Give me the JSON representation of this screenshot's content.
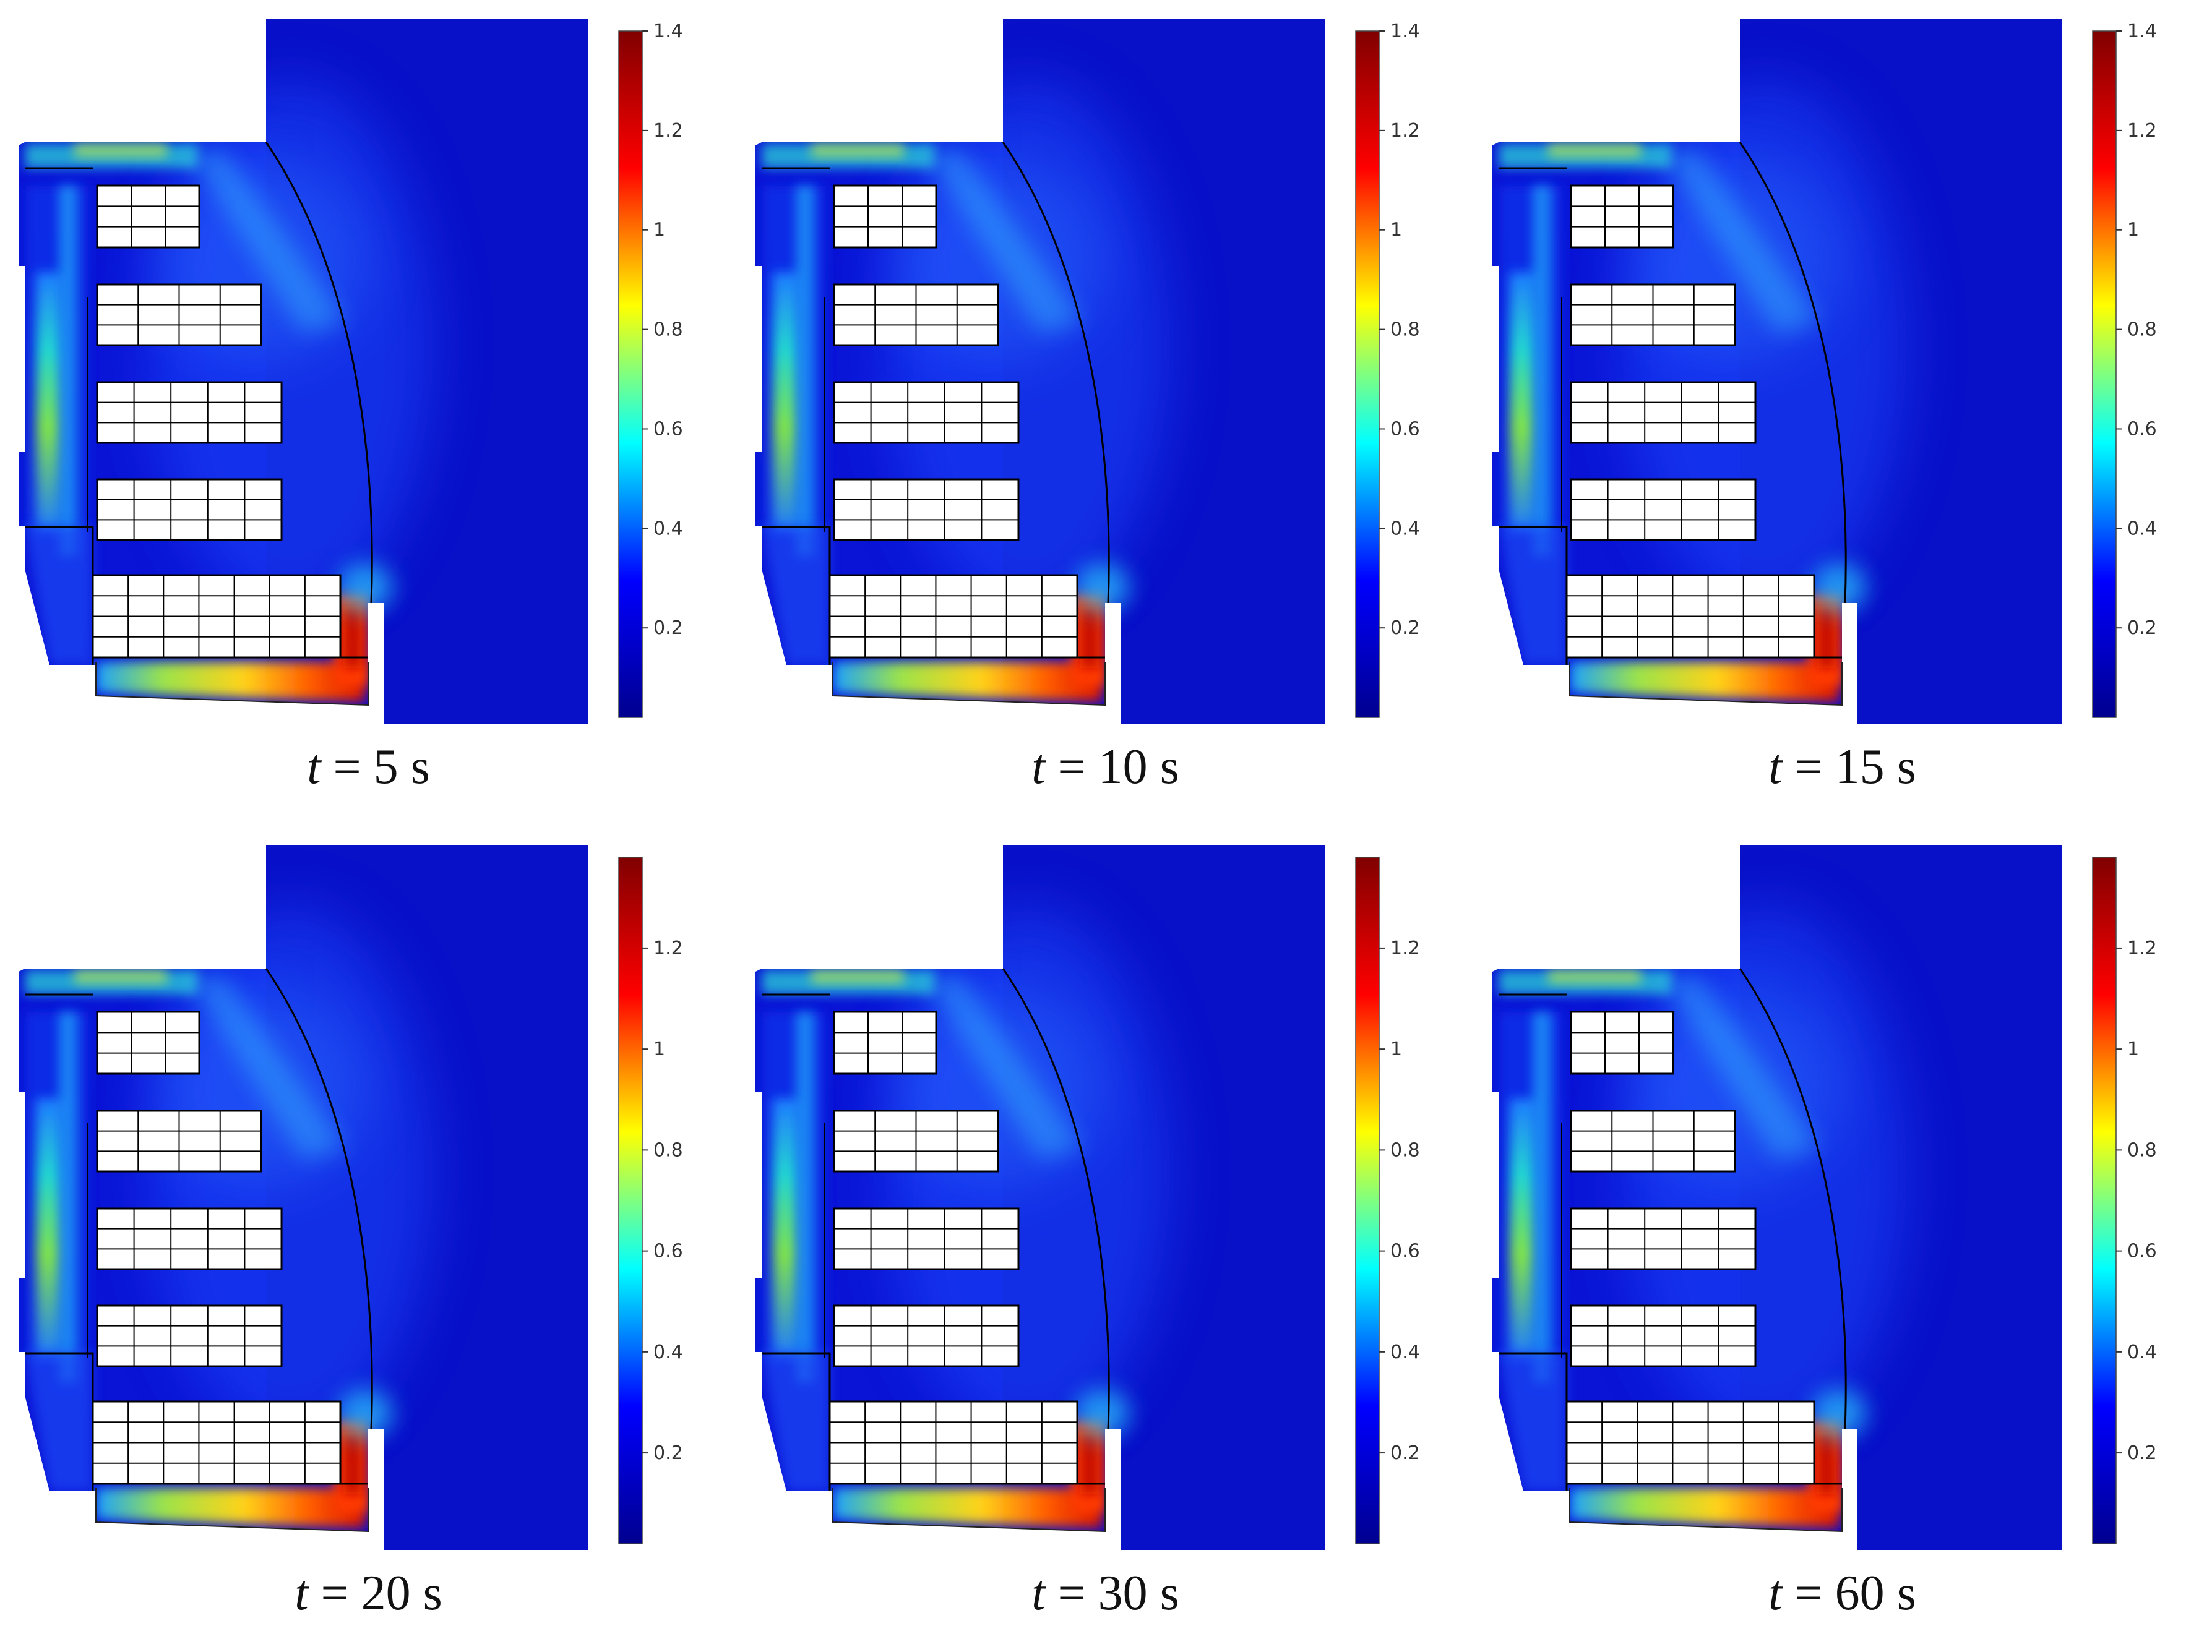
{
  "figure": {
    "colormap": [
      "#00008f",
      "#0000ff",
      "#00ffff",
      "#ffff00",
      "#ff0000",
      "#800000"
    ],
    "geometry_outline_color": "#000000",
    "coil_fill_color": "#ffffff",
    "panels": [
      {
        "time_var": "t",
        "time_value": "5 s",
        "colorbar": {
          "max": 1.4,
          "ticks": [
            "0.2",
            "0.4",
            "0.6",
            "0.8",
            "1",
            "1.2",
            "1.4"
          ]
        }
      },
      {
        "time_var": "t",
        "time_value": "10 s",
        "colorbar": {
          "max": 1.4,
          "ticks": [
            "0.2",
            "0.4",
            "0.6",
            "0.8",
            "1",
            "1.2",
            "1.4"
          ]
        }
      },
      {
        "time_var": "t",
        "time_value": "15 s",
        "colorbar": {
          "max": 1.4,
          "ticks": [
            "0.2",
            "0.4",
            "0.6",
            "0.8",
            "1",
            "1.2",
            "1.4"
          ]
        }
      },
      {
        "time_var": "t",
        "time_value": "20 s",
        "colorbar": {
          "max": 1.38,
          "ticks": [
            "0.2",
            "0.4",
            "0.6",
            "0.8",
            "1",
            "1.2"
          ]
        }
      },
      {
        "time_var": "t",
        "time_value": "30 s",
        "colorbar": {
          "max": 1.38,
          "ticks": [
            "0.2",
            "0.4",
            "0.6",
            "0.8",
            "1",
            "1.2"
          ]
        }
      },
      {
        "time_var": "t",
        "time_value": "60 s",
        "colorbar": {
          "max": 1.38,
          "ticks": [
            "0.2",
            "0.4",
            "0.6",
            "0.8",
            "1",
            "1.2"
          ]
        }
      }
    ]
  }
}
